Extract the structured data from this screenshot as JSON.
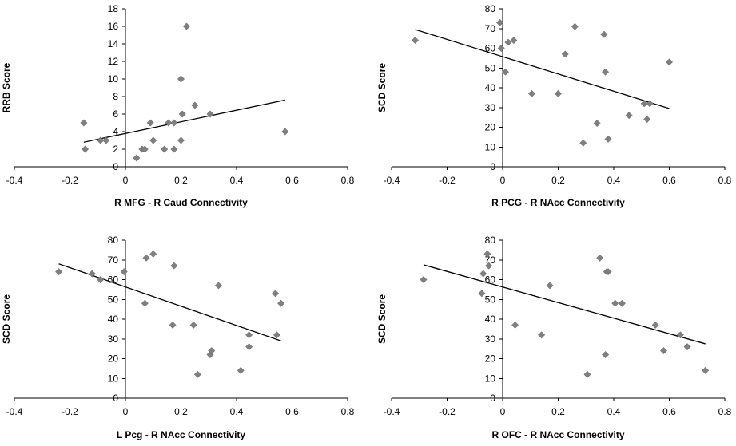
{
  "colors": {
    "marker": "#7f7f7f",
    "line": "#000000",
    "axis": "#000000"
  },
  "chart_data": [
    {
      "type": "scatter",
      "title": "",
      "xlabel": "R MFG - R Caud Connectivity",
      "ylabel": "RRB Score",
      "xlim": [
        -0.4,
        0.8
      ],
      "ylim": [
        0,
        18
      ],
      "xticks": [
        -0.4,
        -0.2,
        0,
        0.2,
        0.4,
        0.6,
        0.8
      ],
      "xtick_labels": [
        "-0.4",
        "-0.2",
        "0",
        "0.2",
        "0.4",
        "0.6",
        "0.8"
      ],
      "yticks": [
        0,
        2,
        4,
        6,
        8,
        10,
        12,
        14,
        16,
        18
      ],
      "ytick_labels": [
        "0",
        "2",
        "4",
        "6",
        "8",
        "10",
        "12",
        "14",
        "16",
        "18"
      ],
      "points": [
        [
          -0.15,
          5
        ],
        [
          -0.145,
          2
        ],
        [
          -0.09,
          3
        ],
        [
          -0.07,
          3
        ],
        [
          0.04,
          1
        ],
        [
          0.06,
          2
        ],
        [
          0.07,
          2
        ],
        [
          0.09,
          5
        ],
        [
          0.1,
          3
        ],
        [
          0.14,
          2
        ],
        [
          0.155,
          5
        ],
        [
          0.175,
          2
        ],
        [
          0.175,
          5
        ],
        [
          0.2,
          3
        ],
        [
          0.2,
          10
        ],
        [
          0.205,
          6
        ],
        [
          0.22,
          16
        ],
        [
          0.25,
          7
        ],
        [
          0.305,
          6
        ],
        [
          0.575,
          4
        ]
      ],
      "trendline": [
        [
          -0.15,
          2.8
        ],
        [
          0.575,
          7.6
        ]
      ]
    },
    {
      "type": "scatter",
      "title": "",
      "xlabel": "R PCG - R NAcc Connectivity",
      "ylabel": "SCD Score",
      "xlim": [
        -0.4,
        0.8
      ],
      "ylim": [
        0,
        80
      ],
      "xticks": [
        -0.4,
        -0.2,
        0,
        0.2,
        0.4,
        0.6,
        0.8
      ],
      "xtick_labels": [
        "-0.4",
        "-0.2",
        "0",
        "0.2",
        "0.4",
        "0.6",
        "0.8"
      ],
      "yticks": [
        0,
        10,
        20,
        30,
        40,
        50,
        60,
        70,
        80
      ],
      "ytick_labels": [
        "0",
        "10",
        "20",
        "30",
        "40",
        "50",
        "60",
        "70",
        "80"
      ],
      "points": [
        [
          -0.315,
          64
        ],
        [
          -0.01,
          73
        ],
        [
          -0.005,
          60
        ],
        [
          0.01,
          48
        ],
        [
          0.02,
          63
        ],
        [
          0.04,
          64
        ],
        [
          0.105,
          37
        ],
        [
          0.2,
          37
        ],
        [
          0.225,
          57
        ],
        [
          0.26,
          71
        ],
        [
          0.29,
          12
        ],
        [
          0.34,
          22
        ],
        [
          0.365,
          67
        ],
        [
          0.37,
          48
        ],
        [
          0.38,
          14
        ],
        [
          0.455,
          26
        ],
        [
          0.51,
          32
        ],
        [
          0.52,
          24
        ],
        [
          0.53,
          32
        ],
        [
          0.6,
          53
        ]
      ],
      "trendline": [
        [
          -0.315,
          69.5
        ],
        [
          0.6,
          29.5
        ]
      ]
    },
    {
      "type": "scatter",
      "title": "",
      "xlabel": "L Pcg - R NAcc Connectivity",
      "ylabel": "SCD Score",
      "xlim": [
        -0.4,
        0.8
      ],
      "ylim": [
        0,
        80
      ],
      "xticks": [
        -0.4,
        -0.2,
        0,
        0.2,
        0.4,
        0.6,
        0.8
      ],
      "xtick_labels": [
        "-0.4",
        "-0.2",
        "0",
        "0.2",
        "0.4",
        "0.6",
        "0.8"
      ],
      "yticks": [
        0,
        10,
        20,
        30,
        40,
        50,
        60,
        70,
        80
      ],
      "ytick_labels": [
        "0",
        "10",
        "20",
        "30",
        "40",
        "50",
        "60",
        "70",
        "80"
      ],
      "points": [
        [
          -0.24,
          64
        ],
        [
          -0.12,
          63
        ],
        [
          -0.09,
          60
        ],
        [
          -0.005,
          64
        ],
        [
          0.07,
          48
        ],
        [
          0.075,
          71
        ],
        [
          0.1,
          73
        ],
        [
          0.17,
          37
        ],
        [
          0.175,
          67
        ],
        [
          0.245,
          37
        ],
        [
          0.26,
          12
        ],
        [
          0.305,
          22
        ],
        [
          0.31,
          24
        ],
        [
          0.335,
          57
        ],
        [
          0.415,
          14
        ],
        [
          0.445,
          32
        ],
        [
          0.445,
          26
        ],
        [
          0.54,
          53
        ],
        [
          0.545,
          32
        ],
        [
          0.56,
          48
        ]
      ],
      "trendline": [
        [
          -0.24,
          68
        ],
        [
          0.56,
          29
        ]
      ]
    },
    {
      "type": "scatter",
      "title": "",
      "xlabel": "R OFC - R NAcc Connectivity",
      "ylabel": "SCD Score",
      "xlim": [
        -0.4,
        0.8
      ],
      "ylim": [
        0,
        80
      ],
      "xticks": [
        -0.4,
        -0.2,
        0,
        0.2,
        0.4,
        0.6,
        0.8
      ],
      "xtick_labels": [
        "-0.4",
        "-0.2",
        "0",
        "0.2",
        "0.4",
        "0.6",
        "0.8"
      ],
      "yticks": [
        0,
        10,
        20,
        30,
        40,
        50,
        60,
        70,
        80
      ],
      "ytick_labels": [
        "0",
        "10",
        "20",
        "30",
        "40",
        "50",
        "60",
        "70",
        "80"
      ],
      "points": [
        [
          -0.285,
          60
        ],
        [
          -0.075,
          53
        ],
        [
          -0.07,
          63
        ],
        [
          -0.055,
          73
        ],
        [
          -0.05,
          67
        ],
        [
          0.045,
          37
        ],
        [
          0.14,
          32
        ],
        [
          0.17,
          57
        ],
        [
          0.305,
          12
        ],
        [
          0.35,
          71
        ],
        [
          0.37,
          22
        ],
        [
          0.375,
          64
        ],
        [
          0.38,
          64
        ],
        [
          0.405,
          48
        ],
        [
          0.43,
          48
        ],
        [
          0.55,
          37
        ],
        [
          0.58,
          24
        ],
        [
          0.64,
          32
        ],
        [
          0.665,
          26
        ],
        [
          0.73,
          14
        ]
      ],
      "trendline": [
        [
          -0.285,
          67.5
        ],
        [
          0.73,
          27.5
        ]
      ]
    }
  ]
}
